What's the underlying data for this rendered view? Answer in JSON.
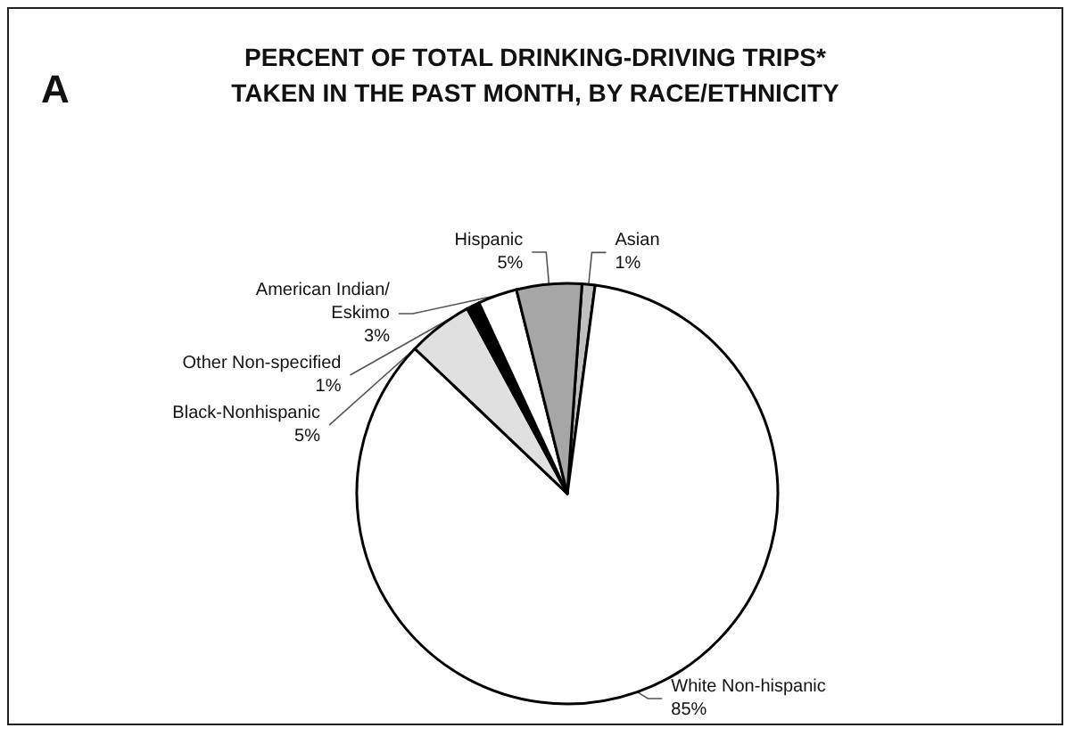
{
  "chart_data": {
    "type": "pie",
    "title": "PERCENT OF TOTAL DRINKING-DRIVING TRIPS*\nTAKEN IN THE PAST MONTH, BY RACE/ETHNICITY",
    "annotations": [
      "A"
    ],
    "categories": [
      "Asian",
      "White Non-hispanic",
      "Black-Nonhispanic",
      "Other Non-specified",
      "American Indian/Eskimo",
      "Hispanic"
    ],
    "values": [
      1,
      85,
      5,
      1,
      3,
      5
    ],
    "value_labels": [
      "1%",
      "85%",
      "5%",
      "1%",
      "3%",
      "5%"
    ],
    "colors": [
      "#bfbfbf",
      "#ffffff",
      "#e0e0e0",
      "#000000",
      "#ffffff",
      "#a6a6a6"
    ],
    "legend": false
  }
}
